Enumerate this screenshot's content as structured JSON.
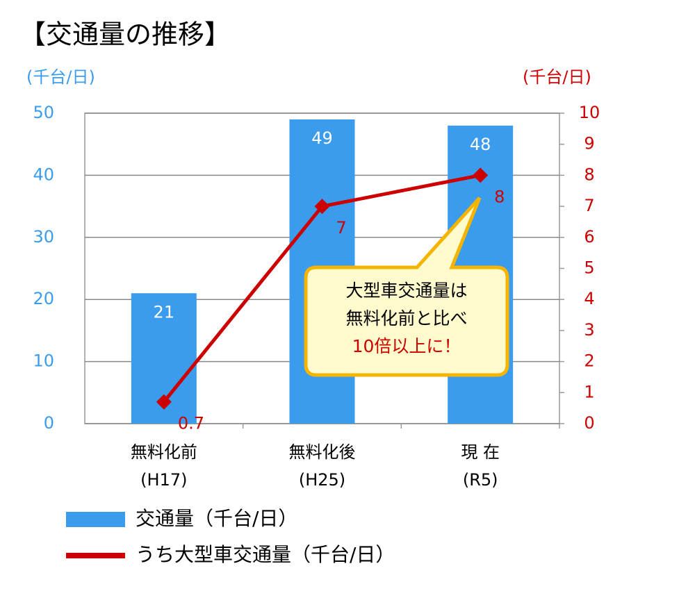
{
  "chart_data": {
    "type": "bar_line",
    "title": "【交通量の推移】",
    "y_label": "(千台/日)",
    "y2_label": "(千台/日)",
    "categories": [
      [
        "無料化前",
        "(H17)"
      ],
      [
        "無料化後",
        "(H25)"
      ],
      [
        "現 在",
        "(R5)"
      ]
    ],
    "series": [
      {
        "name": "交通量（千台/日）",
        "type": "bar",
        "color": "#3b9ced",
        "values": [
          21,
          49,
          48
        ]
      },
      {
        "name": "うち大型車交通量（千台/日）",
        "type": "line",
        "axis": "y2",
        "color": "#cc0000",
        "values": [
          0.7,
          7,
          8
        ]
      }
    ],
    "ylim": [
      0,
      50
    ],
    "yticks": [
      0,
      10,
      20,
      30,
      40,
      50
    ],
    "y2lim": [
      0,
      10
    ],
    "y2ticks": [
      0,
      1,
      2,
      3,
      4,
      5,
      6,
      7,
      8,
      9,
      10
    ],
    "grid": true,
    "annotation": [
      "大型車交通量は",
      "無料化前と比べ",
      "10倍以上に！"
    ]
  }
}
